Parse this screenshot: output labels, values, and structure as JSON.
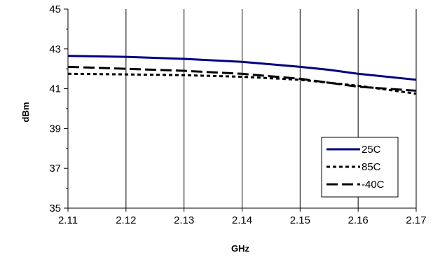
{
  "chart_data": {
    "type": "line",
    "xlabel": "GHz",
    "ylabel": "dBm",
    "xlim": [
      2.11,
      2.17
    ],
    "ylim": [
      35,
      45
    ],
    "x_ticks": [
      "2.11",
      "2.12",
      "2.13",
      "2.14",
      "2.15",
      "2.16",
      "2.17"
    ],
    "y_ticks": [
      "35",
      "37",
      "39",
      "41",
      "43",
      "45"
    ],
    "grid": "vertical",
    "legend_position": "bottom-right",
    "x": [
      2.11,
      2.12,
      2.13,
      2.14,
      2.15,
      2.155,
      2.16,
      2.17
    ],
    "series": [
      {
        "name": "25C",
        "style": "solid",
        "color": "#000080",
        "values": [
          42.65,
          42.6,
          42.5,
          42.35,
          42.1,
          41.95,
          41.75,
          41.45
        ]
      },
      {
        "name": "85C",
        "style": "dotted",
        "color": "#000000",
        "values": [
          41.75,
          41.72,
          41.68,
          41.6,
          41.45,
          41.3,
          41.15,
          40.75
        ]
      },
      {
        "name": "-40C",
        "style": "dashed",
        "color": "#000000",
        "values": [
          42.1,
          42.0,
          41.9,
          41.75,
          41.5,
          41.3,
          41.1,
          40.9
        ]
      }
    ]
  }
}
